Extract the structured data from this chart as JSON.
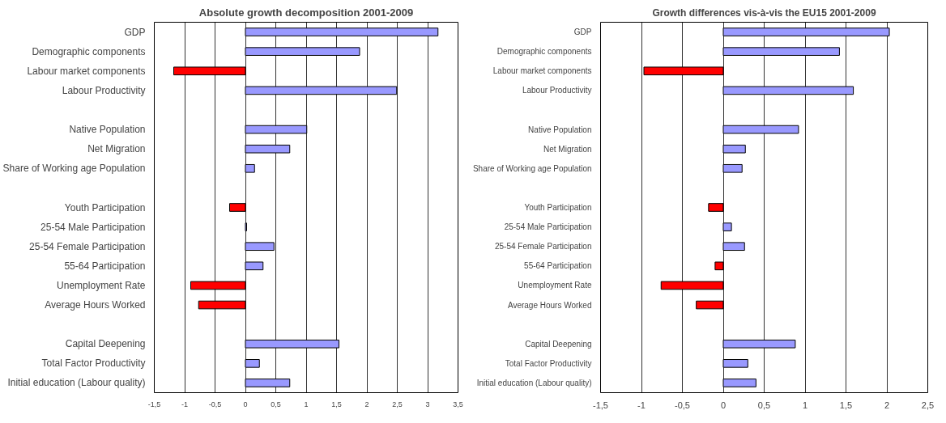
{
  "chart_data": [
    {
      "type": "bar",
      "orientation": "horizontal",
      "title": "Absolute growth decomposition 2001-2009",
      "categories": [
        "GDP",
        "Demographic components",
        "Labour market components",
        "Labour Productivity",
        null,
        "Native Population",
        "Net Migration",
        "Share of Working age Population",
        null,
        "Youth Participation",
        "25-54 Male Participation",
        "25-54 Female Participation",
        "55-64 Participation",
        "Unemployment Rate",
        "Average Hours Worked",
        null,
        "Capital Deepening",
        "Total Factor Productivity",
        "Initial education (Labour quality)"
      ],
      "values": [
        3.17,
        1.88,
        -1.18,
        2.49,
        null,
        1.01,
        0.73,
        0.15,
        null,
        -0.26,
        0.02,
        0.47,
        0.29,
        -0.9,
        -0.77,
        null,
        1.54,
        0.23,
        0.73
      ],
      "colors": [
        "#9999ff",
        "#9999ff",
        "#ff0000",
        "#9999ff",
        null,
        "#9999ff",
        "#9999ff",
        "#9999ff",
        null,
        "#ff0000",
        "#9999ff",
        "#9999ff",
        "#9999ff",
        "#ff0000",
        "#ff0000",
        null,
        "#9999ff",
        "#9999ff",
        "#9999ff"
      ],
      "xlim": [
        -1.5,
        3.5
      ],
      "xticks": [
        {
          "value": -1.5,
          "label": "-1,5"
        },
        -1,
        {
          "value": -0.5,
          "label": "-0,5"
        },
        0,
        {
          "value": 0.5,
          "label": "0,5"
        },
        1,
        {
          "value": 1.5,
          "label": "1,5"
        },
        2,
        {
          "value": 2.5,
          "label": "2,5"
        },
        3,
        {
          "value": 3.5,
          "label": "3,5"
        }
      ],
      "grid": "x"
    },
    {
      "type": "bar",
      "orientation": "horizontal",
      "title": "Growth differences vis-à-vis the EU15 2001-2009",
      "categories": [
        "GDP",
        "Demographic components",
        "Labour market components",
        "Labour Productivity",
        null,
        "Native Population",
        "Net Migration",
        "Share of Working age Population",
        null,
        "Youth Participation",
        "25-54 Male Participation",
        "25-54 Female Participation",
        "55-64 Participation",
        "Unemployment Rate",
        "Average Hours Worked",
        null,
        "Capital Deepening",
        "Total Factor Productivity",
        "Initial education (Labour quality)"
      ],
      "values": [
        2.03,
        1.42,
        -0.97,
        1.59,
        null,
        0.92,
        0.27,
        0.23,
        null,
        -0.18,
        0.1,
        0.26,
        -0.1,
        -0.76,
        -0.33,
        null,
        0.88,
        0.3,
        0.4
      ],
      "colors": [
        "#9999ff",
        "#9999ff",
        "#ff0000",
        "#9999ff",
        null,
        "#9999ff",
        "#9999ff",
        "#9999ff",
        null,
        "#ff0000",
        "#9999ff",
        "#9999ff",
        "#ff0000",
        "#ff0000",
        "#ff0000",
        null,
        "#9999ff",
        "#9999ff",
        "#9999ff"
      ],
      "xlim": [
        -1.5,
        2.5
      ],
      "xticks": [
        {
          "value": -1.5,
          "label": "-1,5"
        },
        -1,
        {
          "value": -0.5,
          "label": "-0,5"
        },
        0,
        {
          "value": 0.5,
          "label": "0,5"
        },
        1,
        {
          "value": 1.5,
          "label": "1,5"
        },
        2,
        {
          "value": 2.5,
          "label": "2,5"
        }
      ],
      "grid": "x"
    }
  ]
}
